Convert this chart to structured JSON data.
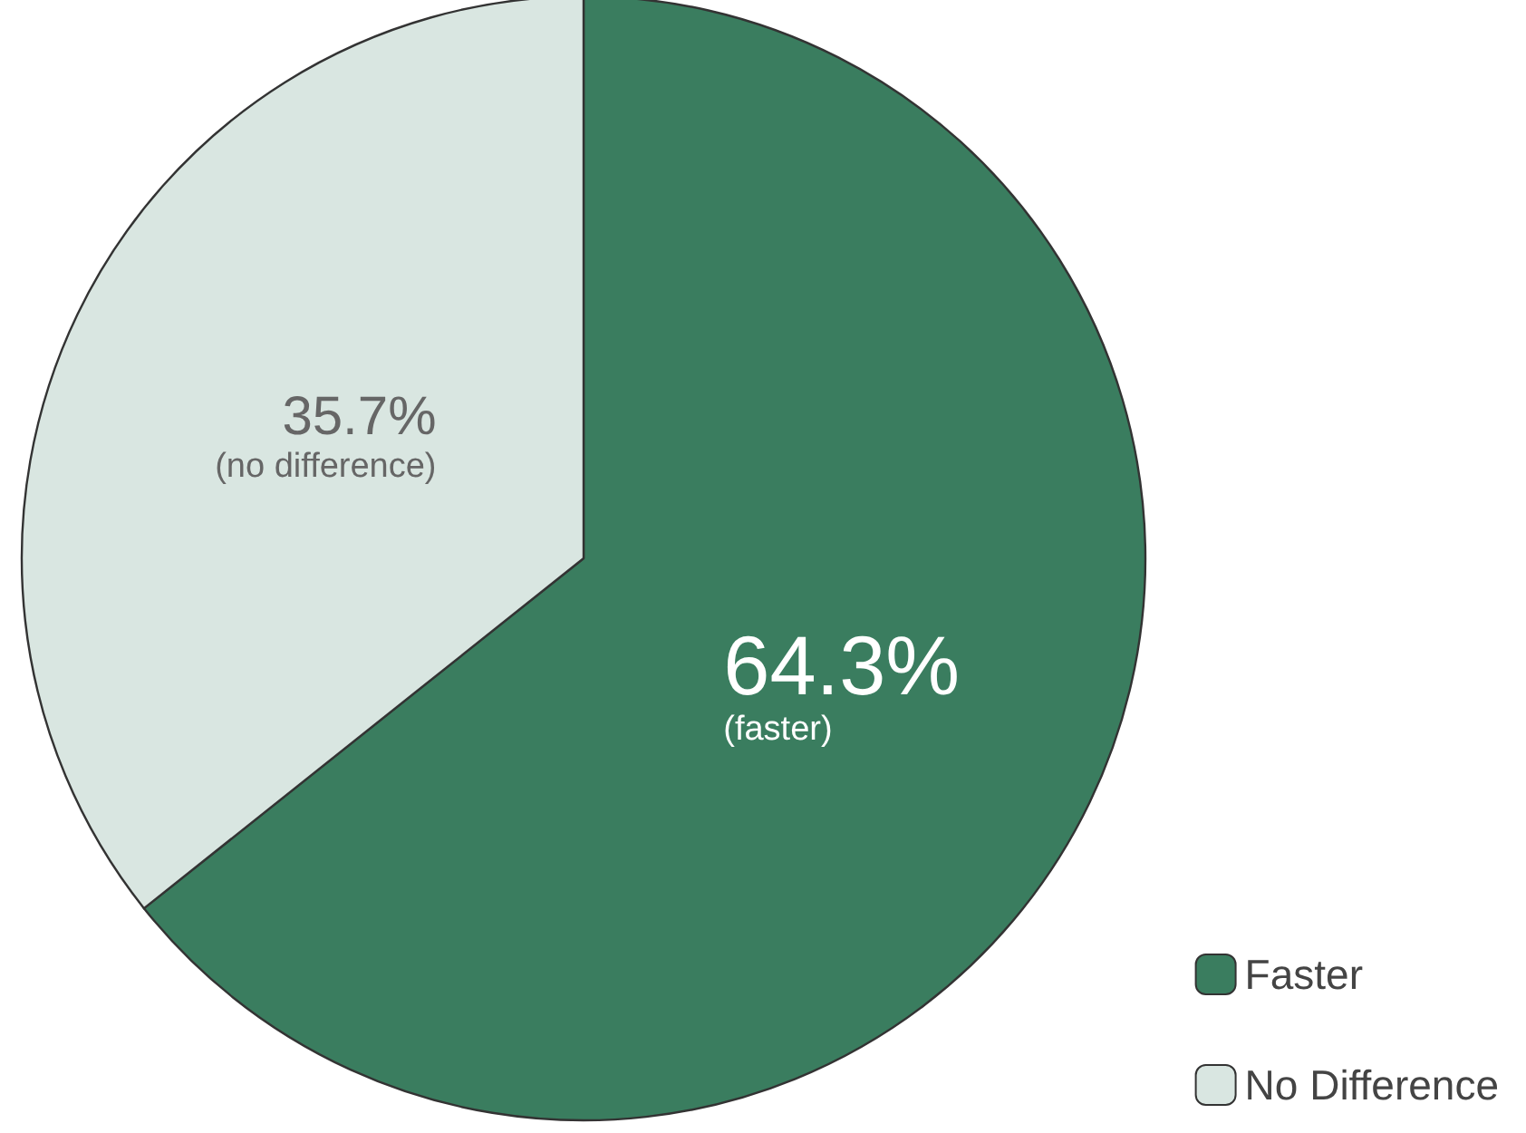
{
  "chart_data": {
    "type": "pie",
    "categories": [
      "Faster",
      "No Difference"
    ],
    "values": [
      64.3,
      35.7
    ],
    "colors": [
      "#3a7d5f",
      "#d9e6e1"
    ],
    "value_labels": [
      "64.3%\n(faster)",
      "35.7%\n(no difference)"
    ],
    "legend": "bottom right"
  }
}
